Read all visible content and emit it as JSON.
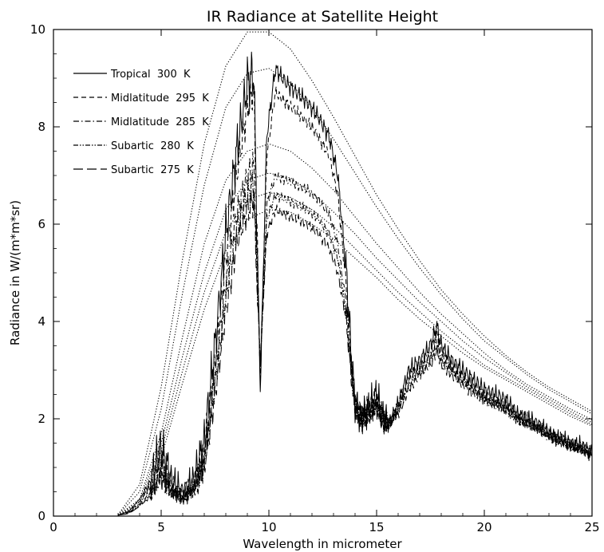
{
  "chart_data": {
    "type": "line",
    "title": "IR Radiance at Satellite Height",
    "xlabel": "Wavelength in micrometer",
    "ylabel": "Radiance in W/(m*m*sr)",
    "xlim": [
      0,
      25
    ],
    "ylim": [
      0,
      10
    ],
    "xticks": [
      0,
      5,
      10,
      15,
      20,
      25
    ],
    "yticks": [
      0,
      2,
      4,
      6,
      8,
      10
    ],
    "grid": false,
    "legend_position": "top-left",
    "legend": [
      {
        "label": "Tropical  300  K",
        "dash": "solid"
      },
      {
        "label": "Midlatitude  295  K",
        "dash": "dashed"
      },
      {
        "label": "Midlatitude  285  K",
        "dash": "dash-dot"
      },
      {
        "label": "Subartic  280  K",
        "dash": "dash-dot-dot"
      },
      {
        "label": "Subartic  275  K",
        "dash": "long-dash"
      }
    ],
    "series": [
      {
        "name": "Tropical  300  K",
        "dash": "solid",
        "jitter": 0.35,
        "x": [
          3,
          3.5,
          4,
          4.5,
          5,
          5.5,
          6,
          6.5,
          7,
          7.5,
          8,
          8.5,
          9,
          9.3,
          9.6,
          9.9,
          10.3,
          10.8,
          11.3,
          11.8,
          12.3,
          12.8,
          13.2,
          13.6,
          13.8,
          14,
          14.3,
          14.6,
          15,
          15.3,
          15.6,
          16,
          16.5,
          17,
          17.5,
          17.8,
          18,
          18.5,
          19,
          19.5,
          20,
          20.5,
          21,
          21.5,
          22,
          22.5,
          23,
          23.5,
          24,
          24.5,
          25
        ],
        "y": [
          0.02,
          0.1,
          0.35,
          0.7,
          1.4,
          0.7,
          0.5,
          0.7,
          1.5,
          3.5,
          5.8,
          7.5,
          8.9,
          9.1,
          2.6,
          7.8,
          9.2,
          8.9,
          8.7,
          8.5,
          8.2,
          7.8,
          7.0,
          5.0,
          3.5,
          2.3,
          2.0,
          2.2,
          2.5,
          2.0,
          1.9,
          2.3,
          3.0,
          3.2,
          3.5,
          3.9,
          3.5,
          3.2,
          3.0,
          2.8,
          2.6,
          2.5,
          2.4,
          2.1,
          2.0,
          1.9,
          1.7,
          1.6,
          1.5,
          1.45,
          1.3
        ]
      },
      {
        "name": "Midlatitude  295  K",
        "dash": "dashed",
        "jitter": 0.25,
        "x": [
          3,
          3.5,
          4,
          4.5,
          5,
          5.5,
          6,
          6.5,
          7,
          7.5,
          8,
          8.5,
          9,
          9.3,
          9.6,
          9.9,
          10.3,
          10.8,
          11.3,
          11.8,
          12.3,
          12.8,
          13.2,
          13.6,
          13.8,
          14,
          14.3,
          14.6,
          15,
          15.3,
          15.6,
          16,
          16.5,
          17,
          17.5,
          17.8,
          18,
          18.5,
          19,
          19.5,
          20,
          20.5,
          21,
          21.5,
          22,
          22.5,
          23,
          23.5,
          24,
          24.5,
          25
        ],
        "y": [
          0.02,
          0.08,
          0.3,
          0.6,
          1.2,
          0.6,
          0.45,
          0.65,
          1.3,
          3.2,
          5.3,
          7.0,
          8.4,
          8.8,
          2.8,
          7.4,
          8.7,
          8.5,
          8.3,
          8.1,
          7.8,
          7.4,
          6.6,
          4.7,
          3.3,
          2.3,
          2.0,
          2.2,
          2.4,
          2.0,
          1.9,
          2.3,
          2.9,
          3.1,
          3.4,
          3.8,
          3.4,
          3.1,
          2.9,
          2.7,
          2.5,
          2.4,
          2.3,
          2.1,
          2.0,
          1.85,
          1.7,
          1.6,
          1.5,
          1.4,
          1.3
        ]
      },
      {
        "name": "Midlatitude  285  K",
        "dash": "dash-dot",
        "jitter": 0.2,
        "x": [
          3,
          3.5,
          4,
          4.5,
          5,
          5.5,
          6,
          6.5,
          7,
          7.5,
          8,
          8.5,
          9,
          9.3,
          9.6,
          9.9,
          10.3,
          10.8,
          11.3,
          11.8,
          12.3,
          12.8,
          13.2,
          13.6,
          13.8,
          14,
          14.3,
          14.6,
          15,
          15.3,
          15.6,
          16,
          16.5,
          17,
          17.5,
          17.8,
          18,
          18.5,
          19,
          19.5,
          20,
          20.5,
          21,
          21.5,
          22,
          22.5,
          23,
          23.5,
          24,
          24.5,
          25
        ],
        "y": [
          0.02,
          0.07,
          0.25,
          0.5,
          1.0,
          0.55,
          0.4,
          0.6,
          1.2,
          2.9,
          4.8,
          6.2,
          7.0,
          7.2,
          3.0,
          6.4,
          7.0,
          6.9,
          6.8,
          6.7,
          6.5,
          6.2,
          5.6,
          4.3,
          3.2,
          2.3,
          2.0,
          2.1,
          2.3,
          2.0,
          1.9,
          2.2,
          2.8,
          3.0,
          3.3,
          3.6,
          3.3,
          3.0,
          2.8,
          2.6,
          2.4,
          2.3,
          2.2,
          2.0,
          1.9,
          1.8,
          1.65,
          1.55,
          1.45,
          1.4,
          1.3
        ]
      },
      {
        "name": "Subartic  280  K",
        "dash": "dash-dot-dot",
        "jitter": 0.2,
        "x": [
          3,
          3.5,
          4,
          4.5,
          5,
          5.5,
          6,
          6.5,
          7,
          7.5,
          8,
          8.5,
          9,
          9.3,
          9.6,
          9.9,
          10.3,
          10.8,
          11.3,
          11.8,
          12.3,
          12.8,
          13.2,
          13.6,
          13.8,
          14,
          14.3,
          14.6,
          15,
          15.3,
          15.6,
          16,
          16.5,
          17,
          17.5,
          17.8,
          18,
          18.5,
          19,
          19.5,
          20,
          20.5,
          21,
          21.5,
          22,
          22.5,
          23,
          23.5,
          24,
          24.5,
          25
        ],
        "y": [
          0.02,
          0.06,
          0.22,
          0.45,
          0.9,
          0.5,
          0.38,
          0.55,
          1.1,
          2.7,
          4.5,
          5.9,
          6.6,
          6.8,
          3.1,
          6.1,
          6.6,
          6.5,
          6.4,
          6.3,
          6.1,
          5.8,
          5.3,
          4.1,
          3.1,
          2.2,
          2.0,
          2.1,
          2.3,
          2.0,
          1.9,
          2.2,
          2.7,
          3.0,
          3.2,
          3.5,
          3.2,
          3.0,
          2.8,
          2.6,
          2.4,
          2.3,
          2.2,
          2.0,
          1.9,
          1.8,
          1.65,
          1.55,
          1.45,
          1.4,
          1.3
        ]
      },
      {
        "name": "Subartic  275  K",
        "dash": "long-dash",
        "jitter": 0.2,
        "x": [
          3,
          3.5,
          4,
          4.5,
          5,
          5.5,
          6,
          6.5,
          7,
          7.5,
          8,
          8.5,
          9,
          9.3,
          9.6,
          9.9,
          10.3,
          10.8,
          11.3,
          11.8,
          12.3,
          12.8,
          13.2,
          13.6,
          13.8,
          14,
          14.3,
          14.6,
          15,
          15.3,
          15.6,
          16,
          16.5,
          17,
          17.5,
          17.8,
          18,
          18.5,
          19,
          19.5,
          20,
          20.5,
          21,
          21.5,
          22,
          22.5,
          23,
          23.5,
          24,
          24.5,
          25
        ],
        "y": [
          0.02,
          0.05,
          0.2,
          0.4,
          0.8,
          0.45,
          0.35,
          0.5,
          1.0,
          2.5,
          4.2,
          5.6,
          6.3,
          6.5,
          3.2,
          5.8,
          6.3,
          6.2,
          6.1,
          6.0,
          5.8,
          5.5,
          5.0,
          4.0,
          3.0,
          2.2,
          2.0,
          2.1,
          2.2,
          2.0,
          1.9,
          2.1,
          2.6,
          2.9,
          3.1,
          3.4,
          3.1,
          2.9,
          2.7,
          2.5,
          2.4,
          2.3,
          2.2,
          2.0,
          1.9,
          1.8,
          1.65,
          1.55,
          1.45,
          1.35,
          1.25
        ]
      },
      {
        "name": "",
        "dash": "dotted",
        "jitter": 0,
        "x": [
          3,
          4,
          5,
          6,
          7,
          8,
          9,
          10,
          11,
          12,
          13,
          14,
          15,
          16,
          17,
          18,
          19,
          20,
          21,
          22,
          23,
          24,
          25
        ],
        "y": [
          0.03,
          0.65,
          2.65,
          5.3,
          7.65,
          9.25,
          9.95,
          9.95,
          9.6,
          8.95,
          8.2,
          7.4,
          6.6,
          5.9,
          5.25,
          4.65,
          4.15,
          3.7,
          3.3,
          2.95,
          2.65,
          2.4,
          2.15
        ]
      },
      {
        "name": "",
        "dash": "dotted",
        "jitter": 0,
        "x": [
          3,
          4,
          5,
          6,
          7,
          8,
          9,
          10,
          11,
          12,
          13,
          14,
          15,
          16,
          17,
          18,
          19,
          20,
          21,
          22,
          23,
          24,
          25
        ],
        "y": [
          0.02,
          0.5,
          2.2,
          4.6,
          6.8,
          8.4,
          9.1,
          9.2,
          8.9,
          8.4,
          7.75,
          7.05,
          6.35,
          5.7,
          5.1,
          4.55,
          4.05,
          3.6,
          3.25,
          2.9,
          2.6,
          2.35,
          2.1
        ]
      },
      {
        "name": "",
        "dash": "dotted",
        "jitter": 0,
        "x": [
          3,
          4,
          5,
          6,
          7,
          8,
          9,
          10,
          11,
          12,
          13,
          14,
          15,
          16,
          17,
          18,
          19,
          20,
          21,
          22,
          23,
          24,
          25
        ],
        "y": [
          0.015,
          0.35,
          1.7,
          3.7,
          5.6,
          6.9,
          7.5,
          7.65,
          7.5,
          7.15,
          6.7,
          6.15,
          5.6,
          5.1,
          4.6,
          4.15,
          3.75,
          3.35,
          3.0,
          2.7,
          2.45,
          2.2,
          1.98
        ]
      },
      {
        "name": "",
        "dash": "dotted",
        "jitter": 0,
        "x": [
          3,
          4,
          5,
          6,
          7,
          8,
          9,
          10,
          11,
          12,
          13,
          14,
          15,
          16,
          17,
          18,
          19,
          20,
          21,
          22,
          23,
          24,
          25
        ],
        "y": [
          0.012,
          0.3,
          1.5,
          3.3,
          5.0,
          6.3,
          6.9,
          7.05,
          6.95,
          6.65,
          6.25,
          5.8,
          5.3,
          4.85,
          4.4,
          4.0,
          3.6,
          3.25,
          2.95,
          2.65,
          2.4,
          2.15,
          1.92
        ]
      },
      {
        "name": "",
        "dash": "dotted",
        "jitter": 0,
        "x": [
          3,
          4,
          5,
          6,
          7,
          8,
          9,
          10,
          11,
          12,
          13,
          14,
          15,
          16,
          17,
          18,
          19,
          20,
          21,
          22,
          23,
          24,
          25
        ],
        "y": [
          0.01,
          0.25,
          1.35,
          3.0,
          4.6,
          5.85,
          6.5,
          6.65,
          6.55,
          6.3,
          5.95,
          5.5,
          5.05,
          4.6,
          4.2,
          3.8,
          3.45,
          3.1,
          2.85,
          2.6,
          2.35,
          2.1,
          1.88
        ]
      },
      {
        "name": "",
        "dash": "dotted",
        "jitter": 0,
        "x": [
          3,
          4,
          5,
          6,
          7,
          8,
          9,
          10,
          11,
          12,
          13,
          14,
          15,
          16,
          17,
          18,
          19,
          20,
          21,
          22,
          23,
          24,
          25
        ],
        "y": [
          0.008,
          0.22,
          1.2,
          2.75,
          4.25,
          5.45,
          6.1,
          6.3,
          6.25,
          6.0,
          5.7,
          5.3,
          4.9,
          4.45,
          4.05,
          3.7,
          3.35,
          3.05,
          2.8,
          2.55,
          2.3,
          2.05,
          1.85
        ]
      }
    ]
  }
}
